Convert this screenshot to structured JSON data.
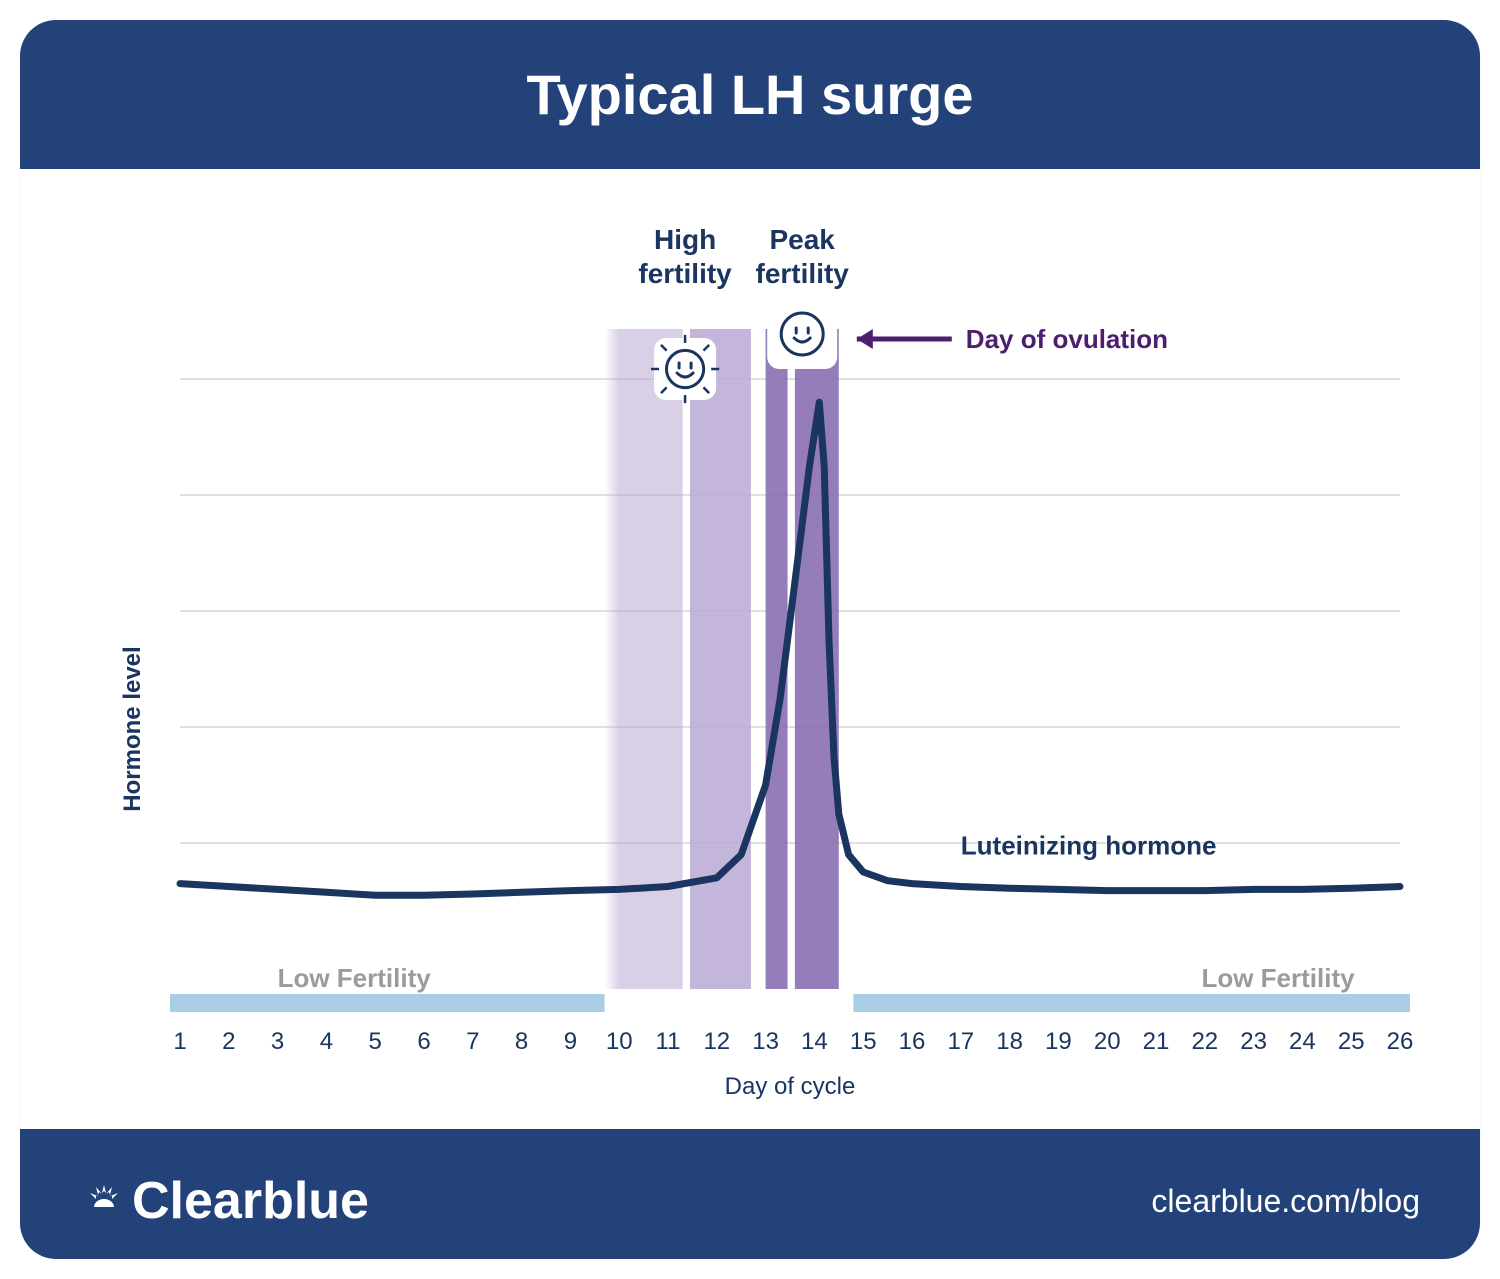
{
  "header": {
    "title": "Typical LH surge"
  },
  "footer": {
    "brand": "Clearblue",
    "url": "clearblue.com/blog"
  },
  "chart": {
    "type": "line",
    "background_color": "#ffffff",
    "yaxis": {
      "label": "Hormone level",
      "label_color": "#1a3560",
      "label_fontsize": 24,
      "ylim": [
        0,
        100
      ],
      "gridlines": [
        20,
        40,
        60,
        80,
        100
      ],
      "grid_color": "#d6d6d6"
    },
    "xaxis": {
      "label": "Day of cycle",
      "label_color": "#1a3560",
      "label_fontsize": 24,
      "xlim": [
        1,
        26
      ],
      "ticks": [
        1,
        2,
        3,
        4,
        5,
        6,
        7,
        8,
        9,
        10,
        11,
        12,
        13,
        14,
        15,
        16,
        17,
        18,
        19,
        20,
        21,
        22,
        23,
        24,
        25,
        26
      ],
      "tick_color": "#1a3560",
      "tick_fontsize": 24
    },
    "fertility_bands": {
      "low_left": {
        "start": 1,
        "end": 9.7,
        "color": "#a9cde4",
        "label": "Low Fertility",
        "label_color": "#9b9b9b"
      },
      "high": {
        "start": 10,
        "end": 12.7,
        "color": "#b9a9d4",
        "label": "High\nfertility",
        "label_color": "#1a3560"
      },
      "peak": {
        "start": 13,
        "end": 14.5,
        "color": "#8a6fb1",
        "label": "Peak\nfertility",
        "label_color": "#1a3560"
      },
      "low_right": {
        "start": 14.8,
        "end": 26,
        "color": "#a9cde4",
        "label": "Low Fertility",
        "label_color": "#9b9b9b"
      }
    },
    "series": {
      "name": "Luteinizing hormone",
      "color": "#1a3560",
      "line_width": 7,
      "label_color": "#1a3560",
      "label_fontsize": 26,
      "points": [
        {
          "x": 1,
          "y": 13
        },
        {
          "x": 2,
          "y": 12.5
        },
        {
          "x": 3,
          "y": 12
        },
        {
          "x": 4,
          "y": 11.5
        },
        {
          "x": 5,
          "y": 11
        },
        {
          "x": 6,
          "y": 11
        },
        {
          "x": 7,
          "y": 11.2
        },
        {
          "x": 8,
          "y": 11.5
        },
        {
          "x": 9,
          "y": 11.8
        },
        {
          "x": 10,
          "y": 12
        },
        {
          "x": 11,
          "y": 12.5
        },
        {
          "x": 12,
          "y": 14
        },
        {
          "x": 12.5,
          "y": 18
        },
        {
          "x": 13,
          "y": 30
        },
        {
          "x": 13.3,
          "y": 45
        },
        {
          "x": 13.6,
          "y": 65
        },
        {
          "x": 13.9,
          "y": 85
        },
        {
          "x": 14.1,
          "y": 96
        },
        {
          "x": 14.2,
          "y": 85
        },
        {
          "x": 14.3,
          "y": 55
        },
        {
          "x": 14.4,
          "y": 35
        },
        {
          "x": 14.5,
          "y": 25
        },
        {
          "x": 14.7,
          "y": 18
        },
        {
          "x": 15,
          "y": 15
        },
        {
          "x": 15.5,
          "y": 13.5
        },
        {
          "x": 16,
          "y": 13
        },
        {
          "x": 17,
          "y": 12.5
        },
        {
          "x": 18,
          "y": 12.2
        },
        {
          "x": 19,
          "y": 12
        },
        {
          "x": 20,
          "y": 11.8
        },
        {
          "x": 21,
          "y": 11.8
        },
        {
          "x": 22,
          "y": 11.8
        },
        {
          "x": 23,
          "y": 12
        },
        {
          "x": 24,
          "y": 12
        },
        {
          "x": 25,
          "y": 12.2
        },
        {
          "x": 26,
          "y": 12.5
        }
      ]
    },
    "annotation": {
      "text": "Day of ovulation",
      "color": "#4b1e6e",
      "arrow_color": "#4b1e6e",
      "fontsize": 26,
      "target_x": 14.5
    },
    "icons": {
      "high_smiley_bg": "#ffffff",
      "peak_smiley_bg": "#ffffff",
      "smiley_stroke": "#1a3560"
    }
  },
  "colors": {
    "header_bg": "#24427a",
    "footer_bg": "#24427a",
    "card_bg": "#ffffff",
    "text_white": "#ffffff"
  }
}
